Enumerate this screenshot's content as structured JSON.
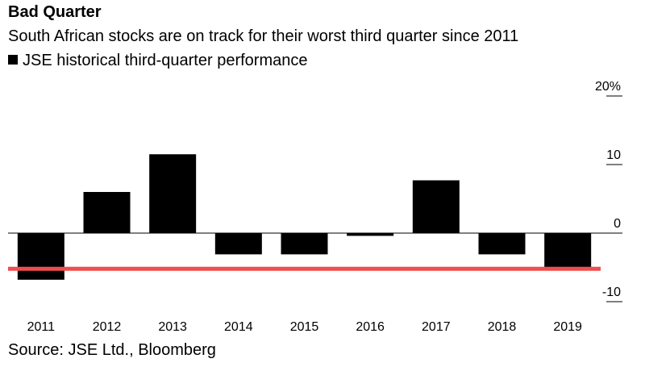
{
  "title": "Bad Quarter",
  "subtitle": "South African stocks are on track for their worst third quarter since 2011",
  "legend_label": "JSE historical third-quarter performance",
  "source": "Source: JSE Ltd., Bloomberg",
  "colors": {
    "bar": "#000000",
    "reference_line": "#ee4e4e",
    "grid": "#000000"
  },
  "chart_data": {
    "type": "bar",
    "categories": [
      "2011",
      "2012",
      "2013",
      "2014",
      "2015",
      "2016",
      "2017",
      "2018",
      "2019"
    ],
    "values": [
      -6.8,
      6.0,
      11.5,
      -3.1,
      -3.1,
      -0.4,
      7.7,
      -3.1,
      -5.0
    ],
    "series": [
      {
        "name": "JSE historical third-quarter performance",
        "values": [
          -6.8,
          6.0,
          11.5,
          -3.1,
          -3.1,
          -0.4,
          7.7,
          -3.1,
          -5.0
        ]
      }
    ],
    "y_ticks": [
      20,
      10,
      0,
      -10
    ],
    "y_tick_labels": [
      "20%",
      "10",
      "0",
      "-10"
    ],
    "ylim": [
      -10,
      20
    ],
    "y_axis_position": "right",
    "reference_line": {
      "value": -5.2
    },
    "grid": false,
    "legend_position": "top-left"
  }
}
